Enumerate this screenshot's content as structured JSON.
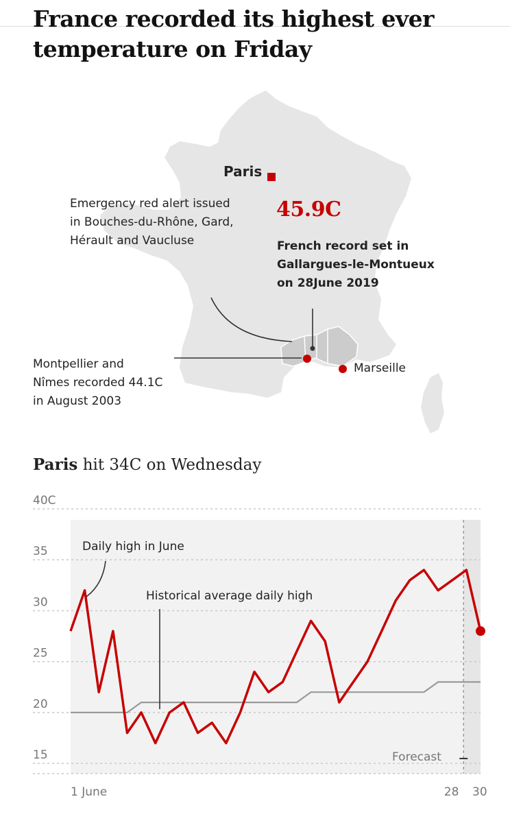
{
  "headline": "France recorded its highest ever temperature on Friday",
  "map": {
    "paris_label": "Paris",
    "alert_note": [
      "Emergency red alert issued",
      "in Bouches-du-Rhône, Gard,",
      "Hérault and Vaucluse"
    ],
    "record_value": "45.9C",
    "record_note": [
      "French record set in",
      "Gallargues-le-Montueux",
      "on 28June 2019"
    ],
    "montpellier_note": [
      "Montpellier and",
      "Nîmes recorded 44.1C",
      "in August 2003"
    ],
    "marseille_label": "Marseille",
    "colors": {
      "land": "#e6e6e6",
      "alert_region": "#cccccc",
      "marker": "#c70000"
    }
  },
  "subhead": {
    "bold": "Paris",
    "rest": "hit 34C on Wednesday"
  },
  "chart_data": {
    "type": "line",
    "x_labels": [
      "1 June",
      "28",
      "30"
    ],
    "y_ticks": [
      "40C",
      "35",
      "30",
      "25",
      "20",
      "15"
    ],
    "ylim": [
      14,
      40
    ],
    "x": [
      1,
      2,
      3,
      4,
      5,
      6,
      7,
      8,
      9,
      10,
      11,
      12,
      13,
      14,
      15,
      16,
      17,
      18,
      19,
      20,
      21,
      22,
      23,
      24,
      25,
      26,
      27,
      28,
      29,
      30
    ],
    "series": [
      {
        "name": "Daily high in June",
        "color": "#c70000",
        "values": [
          28,
          32,
          22,
          28,
          18,
          20,
          17,
          20,
          21,
          18,
          19,
          17,
          20,
          24,
          22,
          23,
          26,
          29,
          27,
          21,
          23,
          25,
          28,
          31,
          33,
          34,
          32,
          33,
          34,
          28
        ]
      },
      {
        "name": "Historical average daily high",
        "color": "#999999",
        "values": [
          20,
          20,
          20,
          20,
          20,
          21,
          21,
          21,
          21,
          21,
          21,
          21,
          21,
          21,
          21,
          21,
          21,
          22,
          22,
          22,
          22,
          22,
          22,
          22,
          22,
          22,
          23,
          23,
          23,
          23
        ]
      }
    ],
    "forecast_label": "Forecast",
    "forecast_start_day": 28.8
  }
}
